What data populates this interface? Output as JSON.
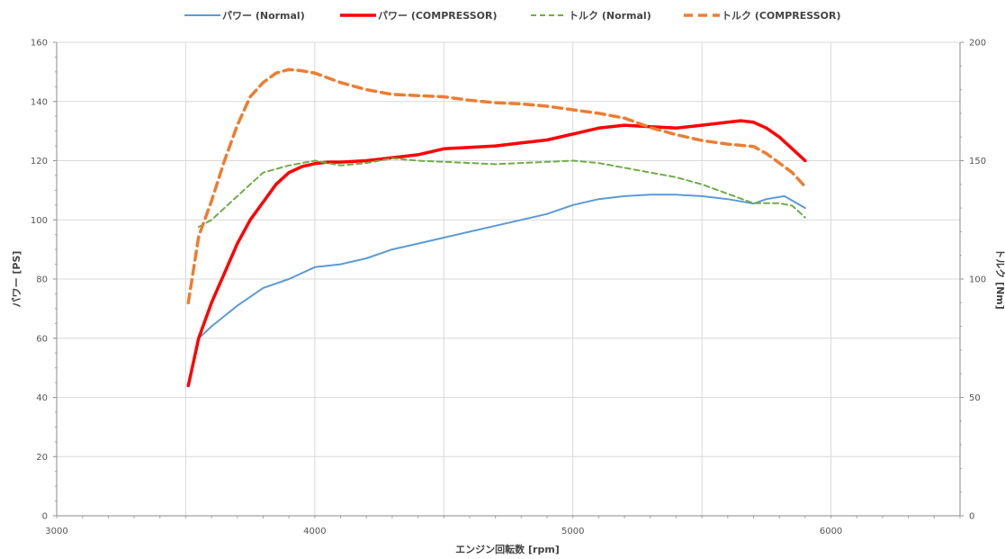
{
  "chart_data": {
    "type": "line",
    "title": "",
    "xlabel": "エンジン回転数 [rpm]",
    "ylabel_left": "パワー [PS]",
    "ylabel_right": "トルク [Nm]",
    "xlim": [
      3000,
      6500
    ],
    "ylim_left": [
      0,
      160
    ],
    "ylim_right": [
      0,
      200
    ],
    "x_ticks": [
      3000,
      4000,
      5000,
      6000
    ],
    "y_ticks_left": [
      0,
      20,
      40,
      60,
      80,
      100,
      120,
      140,
      160
    ],
    "y_ticks_right": [
      0,
      50,
      100,
      150,
      200
    ],
    "grid": true,
    "legend_position": "top",
    "series": [
      {
        "name": "パワー (Normal)",
        "axis": "left",
        "color": "#5b9bd5",
        "style": "solid",
        "points": [
          [
            3550,
            60
          ],
          [
            3600,
            64
          ],
          [
            3700,
            71
          ],
          [
            3800,
            77
          ],
          [
            3900,
            80
          ],
          [
            4000,
            84
          ],
          [
            4100,
            85
          ],
          [
            4200,
            87
          ],
          [
            4300,
            90
          ],
          [
            4400,
            92
          ],
          [
            4500,
            94
          ],
          [
            4600,
            96
          ],
          [
            4700,
            98
          ],
          [
            4800,
            100
          ],
          [
            4900,
            102
          ],
          [
            5000,
            105
          ],
          [
            5100,
            107
          ],
          [
            5200,
            108
          ],
          [
            5300,
            108.5
          ],
          [
            5400,
            108.5
          ],
          [
            5500,
            108
          ],
          [
            5600,
            107
          ],
          [
            5700,
            105.5
          ],
          [
            5750,
            107
          ],
          [
            5820,
            108
          ],
          [
            5900,
            104
          ]
        ]
      },
      {
        "name": "パワー (COMPRESSOR)",
        "axis": "left",
        "color": "#ff0000",
        "style": "solid-thick",
        "points": [
          [
            3510,
            44
          ],
          [
            3550,
            60
          ],
          [
            3600,
            72
          ],
          [
            3650,
            82
          ],
          [
            3700,
            92
          ],
          [
            3750,
            100
          ],
          [
            3800,
            106
          ],
          [
            3850,
            112
          ],
          [
            3900,
            116
          ],
          [
            3950,
            118
          ],
          [
            4000,
            119
          ],
          [
            4050,
            119.5
          ],
          [
            4100,
            119.5
          ],
          [
            4200,
            120
          ],
          [
            4300,
            121
          ],
          [
            4400,
            122
          ],
          [
            4500,
            124
          ],
          [
            4600,
            124.5
          ],
          [
            4700,
            125
          ],
          [
            4800,
            126
          ],
          [
            4900,
            127
          ],
          [
            5000,
            129
          ],
          [
            5100,
            131
          ],
          [
            5200,
            132
          ],
          [
            5300,
            131.5
          ],
          [
            5400,
            131
          ],
          [
            5500,
            132
          ],
          [
            5600,
            133
          ],
          [
            5650,
            133.5
          ],
          [
            5700,
            133
          ],
          [
            5750,
            131
          ],
          [
            5800,
            128
          ],
          [
            5850,
            124
          ],
          [
            5900,
            120
          ]
        ]
      },
      {
        "name": "トルク (Normal)",
        "axis": "right",
        "color": "#70ad47",
        "style": "dashed",
        "points": [
          [
            3550,
            122
          ],
          [
            3600,
            125
          ],
          [
            3700,
            135
          ],
          [
            3800,
            145
          ],
          [
            3900,
            148
          ],
          [
            4000,
            150
          ],
          [
            4100,
            148
          ],
          [
            4200,
            149
          ],
          [
            4300,
            151
          ],
          [
            4400,
            150
          ],
          [
            4500,
            149.5
          ],
          [
            4600,
            149
          ],
          [
            4700,
            148.5
          ],
          [
            4800,
            149
          ],
          [
            4900,
            149.5
          ],
          [
            5000,
            150
          ],
          [
            5100,
            149
          ],
          [
            5200,
            147
          ],
          [
            5300,
            145
          ],
          [
            5400,
            143
          ],
          [
            5500,
            140
          ],
          [
            5600,
            136
          ],
          [
            5700,
            132
          ],
          [
            5800,
            132
          ],
          [
            5850,
            131
          ],
          [
            5900,
            126
          ]
        ]
      },
      {
        "name": "トルク (COMPRESSOR)",
        "axis": "right",
        "color": "#ed7d31",
        "style": "dashed-thick",
        "points": [
          [
            3510,
            90
          ],
          [
            3550,
            118
          ],
          [
            3600,
            133
          ],
          [
            3650,
            150
          ],
          [
            3700,
            165
          ],
          [
            3750,
            177
          ],
          [
            3800,
            183
          ],
          [
            3850,
            187
          ],
          [
            3900,
            188.5
          ],
          [
            3950,
            188
          ],
          [
            4000,
            187
          ],
          [
            4100,
            183
          ],
          [
            4200,
            180
          ],
          [
            4300,
            178
          ],
          [
            4400,
            177.5
          ],
          [
            4500,
            177
          ],
          [
            4600,
            175.5
          ],
          [
            4700,
            174.5
          ],
          [
            4800,
            174
          ],
          [
            4900,
            173
          ],
          [
            5000,
            171.5
          ],
          [
            5100,
            170
          ],
          [
            5200,
            168
          ],
          [
            5300,
            164
          ],
          [
            5400,
            161
          ],
          [
            5500,
            158.5
          ],
          [
            5600,
            157
          ],
          [
            5700,
            156
          ],
          [
            5750,
            153
          ],
          [
            5800,
            149
          ],
          [
            5850,
            145
          ],
          [
            5900,
            139
          ]
        ]
      }
    ]
  }
}
